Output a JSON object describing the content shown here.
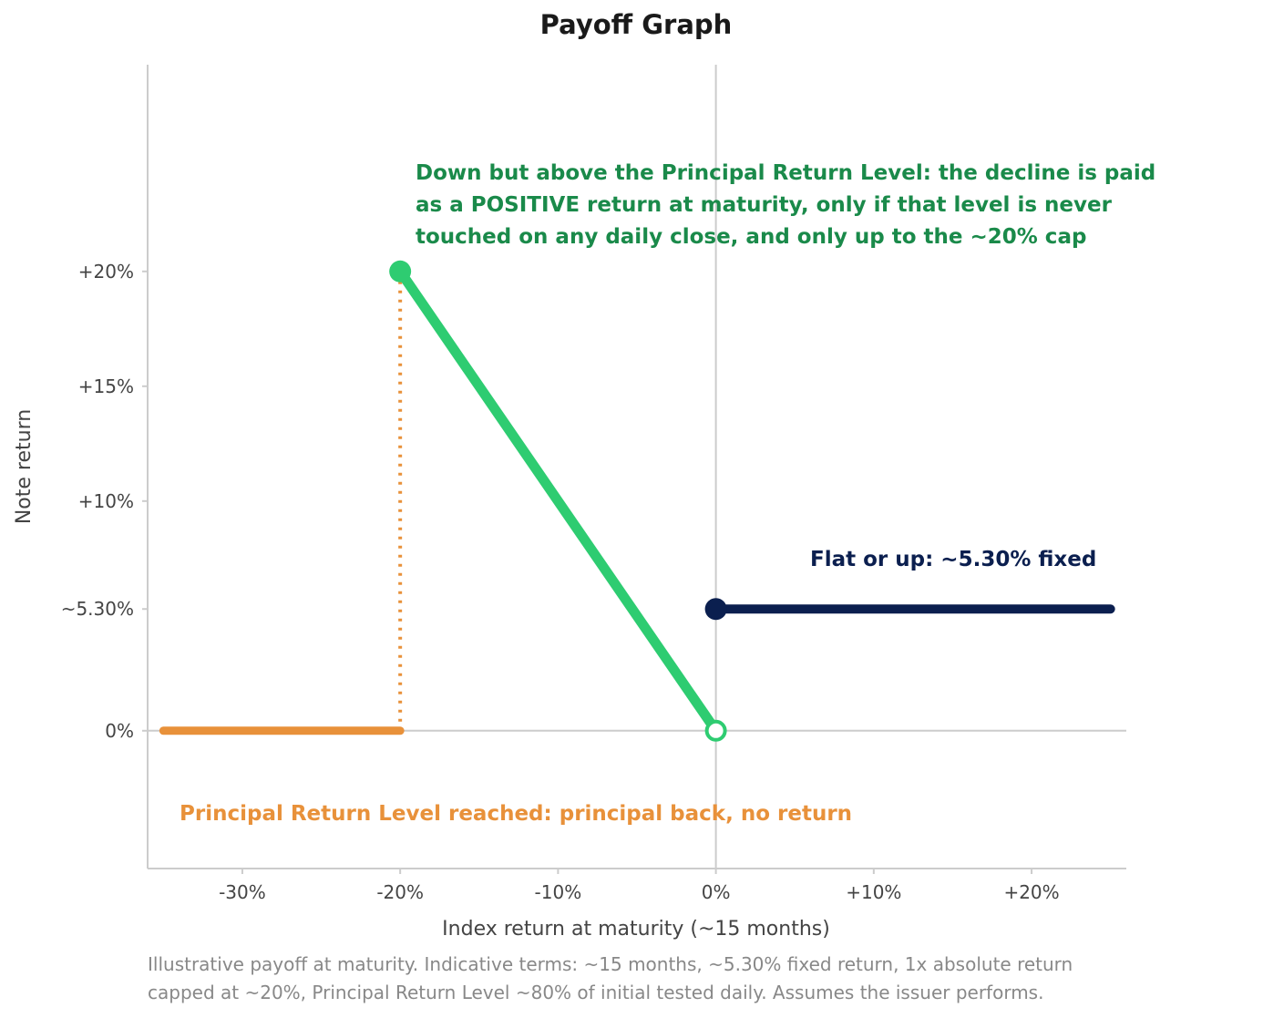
{
  "chart_data": {
    "type": "line",
    "title": "Payoff Graph",
    "xlabel": "Index return at maturity (~15 months)",
    "ylabel": "Note return",
    "xlim": [
      -36,
      26
    ],
    "ylim": [
      -6,
      29
    ],
    "x_ticks": [
      {
        "value": -30,
        "label": "-30%"
      },
      {
        "value": -20,
        "label": "-20%"
      },
      {
        "value": -10,
        "label": "-10%"
      },
      {
        "value": 0,
        "label": "0%"
      },
      {
        "value": 10,
        "label": "+10%"
      },
      {
        "value": 20,
        "label": "+20%"
      }
    ],
    "y_ticks": [
      {
        "value": 0,
        "label": "0%"
      },
      {
        "value": 5.3,
        "label": "~5.30%"
      },
      {
        "value": 10,
        "label": "+10%"
      },
      {
        "value": 15,
        "label": "+15%"
      },
      {
        "value": 20,
        "label": "+20%"
      }
    ],
    "series": [
      {
        "key": "principal",
        "x": [
          -35,
          -20
        ],
        "y": [
          0,
          0
        ],
        "color": "#e8913a"
      },
      {
        "key": "absolute",
        "x": [
          -20,
          0
        ],
        "y": [
          20,
          0
        ],
        "color": "#2ecc71"
      },
      {
        "key": "fixed",
        "x": [
          0,
          25
        ],
        "y": [
          5.3,
          5.3
        ],
        "color": "#0b1f4f"
      }
    ],
    "markers": [
      {
        "x": -20,
        "y": 20,
        "style": "filled",
        "color": "#2ecc71"
      },
      {
        "x": 0,
        "y": 0,
        "style": "hollow",
        "color": "#2ecc71"
      },
      {
        "x": 0,
        "y": 5.3,
        "style": "filled",
        "color": "#0b1f4f"
      }
    ],
    "drop_line": {
      "x": -20,
      "y_from": 0,
      "y_to": 20,
      "color": "#e8913a"
    },
    "annotations": [
      {
        "key": "absolute",
        "lines": [
          "Down but above the Principal Return Level: the decline is paid",
          "as a POSITIVE return at maturity, only if that level is never",
          "touched on any daily close, and only up to the ~20% cap"
        ],
        "color": "#1a8a4a"
      },
      {
        "key": "fixed",
        "lines": [
          "Flat or up: ~5.30% fixed"
        ],
        "color": "#0b1f4f"
      },
      {
        "key": "principal",
        "lines": [
          "Principal Return Level reached: principal back, no return"
        ],
        "color": "#e8913a"
      }
    ],
    "grid": false,
    "legend": "none"
  },
  "footnote": {
    "line1": "Illustrative payoff at maturity. Indicative terms: ~15 months, ~5.30% fixed return, 1x absolute return",
    "line2": "capped at ~20%, Principal Return Level ~80% of initial tested daily. Assumes the issuer performs."
  }
}
